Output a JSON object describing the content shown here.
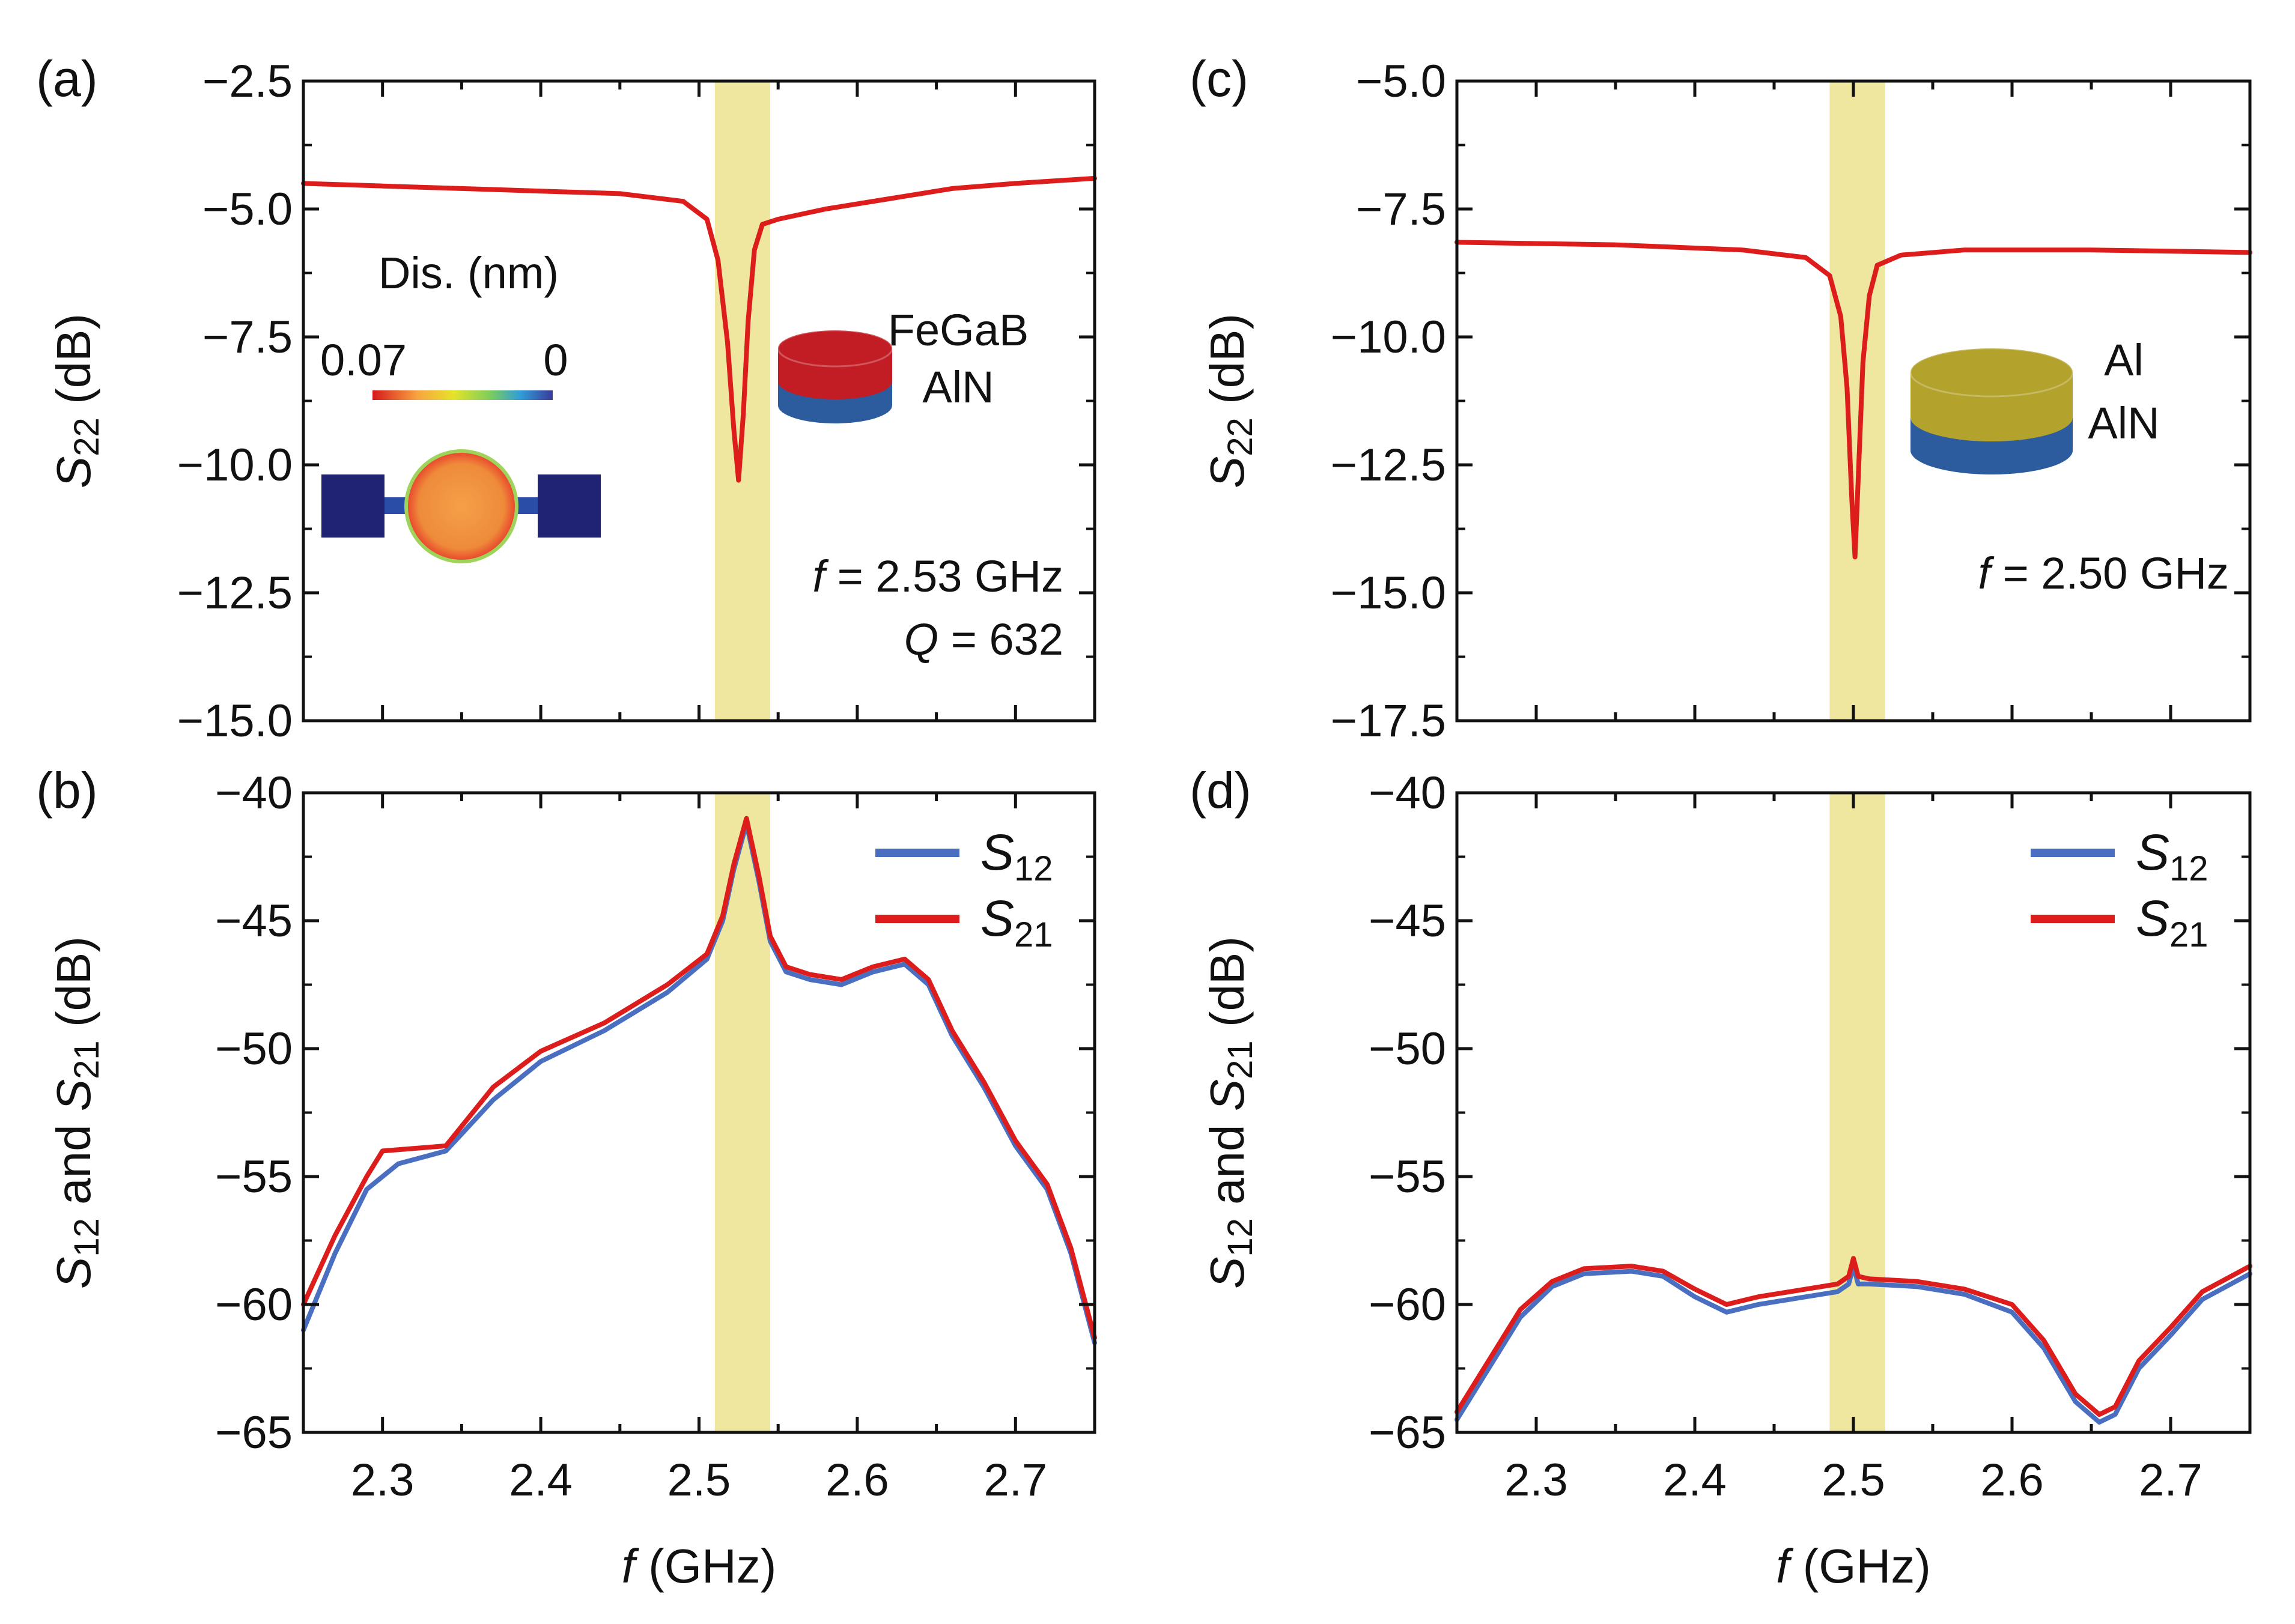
{
  "figure": {
    "x_axis_label_italic": "f",
    "x_axis_label_rest": " (GHz)"
  },
  "chart_data": [
    {
      "id": "a",
      "type": "line",
      "panel_label": "(a)",
      "ylabel_main": "S",
      "ylabel_sub": "22",
      "ylabel_rest": " (dB)",
      "ylim": [
        -15.0,
        -2.5
      ],
      "yticks": [
        "-2.5",
        "-5.0",
        "-7.5",
        "-10.0",
        "-12.5",
        "-15.0"
      ],
      "ytick_values": [
        -2.5,
        -5.0,
        -7.5,
        -10.0,
        -12.5,
        -15.0
      ],
      "xlim": [
        2.25,
        2.75
      ],
      "xticks_visible": false,
      "highlight_band": [
        2.51,
        2.545
      ],
      "series": [
        {
          "name": "S22",
          "color": "#dd1c1c",
          "x": [
            2.25,
            2.3,
            2.35,
            2.4,
            2.45,
            2.49,
            2.505,
            2.512,
            2.518,
            2.522,
            2.525,
            2.528,
            2.531,
            2.535,
            2.54,
            2.55,
            2.58,
            2.62,
            2.66,
            2.7,
            2.75
          ],
          "y": [
            -4.5,
            -4.55,
            -4.6,
            -4.65,
            -4.7,
            -4.85,
            -5.2,
            -6.0,
            -7.6,
            -9.3,
            -10.3,
            -9.0,
            -7.2,
            -5.8,
            -5.3,
            -5.2,
            -5.0,
            -4.8,
            -4.6,
            -4.5,
            -4.4
          ]
        }
      ],
      "inset": {
        "colorbar_title": "Dis. (nm)",
        "colorbar_max_label": "0.07",
        "colorbar_min_label": "0",
        "stack_top_label": "FeGaB",
        "stack_bottom_label": "AlN",
        "stack_top_color": "#c21d24",
        "stack_bottom_color": "#2d5c9e"
      },
      "annotation_lines": [
        {
          "var": "f",
          "rest": " = 2.53 GHz"
        },
        {
          "var": "Q",
          "rest": " = 632"
        }
      ]
    },
    {
      "id": "b",
      "type": "line",
      "panel_label": "(b)",
      "ylabel_parts": [
        "S",
        "12",
        " and ",
        "S",
        "21",
        " (dB)"
      ],
      "ylim": [
        -65,
        -40
      ],
      "yticks": [
        "-40",
        "-45",
        "-50",
        "-55",
        "-60",
        "-65"
      ],
      "ytick_values": [
        -40,
        -45,
        -50,
        -55,
        -60,
        -65
      ],
      "xlim": [
        2.25,
        2.75
      ],
      "xticks": [
        "2.3",
        "2.4",
        "2.5",
        "2.6",
        "2.7"
      ],
      "xtick_values": [
        2.3,
        2.4,
        2.5,
        2.6,
        2.7
      ],
      "highlight_band": [
        2.51,
        2.545
      ],
      "legend": [
        {
          "main": "S",
          "sub": "12",
          "color": "#4a6fc1"
        },
        {
          "main": "S",
          "sub": "21",
          "color": "#dd1c1c"
        }
      ],
      "series": [
        {
          "name": "S12",
          "color": "#4a6fc1",
          "x": [
            2.25,
            2.27,
            2.29,
            2.31,
            2.34,
            2.37,
            2.4,
            2.44,
            2.48,
            2.505,
            2.515,
            2.522,
            2.53,
            2.538,
            2.545,
            2.555,
            2.57,
            2.59,
            2.61,
            2.63,
            2.645,
            2.66,
            2.68,
            2.7,
            2.72,
            2.735,
            2.75
          ],
          "y": [
            -61.0,
            -58.0,
            -55.5,
            -54.5,
            -54.0,
            -52.0,
            -50.5,
            -49.3,
            -47.8,
            -46.5,
            -45.0,
            -43.0,
            -41.2,
            -43.5,
            -45.8,
            -47.0,
            -47.3,
            -47.5,
            -47.0,
            -46.7,
            -47.5,
            -49.5,
            -51.5,
            -53.8,
            -55.5,
            -58.0,
            -61.5
          ]
        },
        {
          "name": "S21",
          "color": "#dd1c1c",
          "x": [
            2.25,
            2.27,
            2.29,
            2.3,
            2.34,
            2.37,
            2.4,
            2.44,
            2.48,
            2.505,
            2.515,
            2.522,
            2.53,
            2.538,
            2.545,
            2.555,
            2.57,
            2.59,
            2.61,
            2.63,
            2.645,
            2.66,
            2.68,
            2.7,
            2.72,
            2.735,
            2.75
          ],
          "y": [
            -60.0,
            -57.3,
            -55.0,
            -54.0,
            -53.8,
            -51.5,
            -50.1,
            -49.0,
            -47.5,
            -46.3,
            -44.8,
            -42.8,
            -41.0,
            -43.3,
            -45.6,
            -46.8,
            -47.1,
            -47.3,
            -46.8,
            -46.5,
            -47.3,
            -49.3,
            -51.3,
            -53.6,
            -55.3,
            -57.8,
            -61.3
          ]
        }
      ]
    },
    {
      "id": "c",
      "type": "line",
      "panel_label": "(c)",
      "ylabel_main": "S",
      "ylabel_sub": "22",
      "ylabel_rest": " (dB)",
      "ylim": [
        -17.5,
        -5.0
      ],
      "yticks": [
        "-5.0",
        "-7.5",
        "-10.0",
        "-12.5",
        "-15.0",
        "-17.5"
      ],
      "ytick_values": [
        -5.0,
        -7.5,
        -10.0,
        -12.5,
        -15.0,
        -17.5
      ],
      "xlim": [
        2.25,
        2.75
      ],
      "xticks_visible": false,
      "highlight_band": [
        2.485,
        2.52
      ],
      "series": [
        {
          "name": "S22",
          "color": "#dd1c1c",
          "x": [
            2.25,
            2.35,
            2.43,
            2.47,
            2.485,
            2.492,
            2.496,
            2.499,
            2.501,
            2.503,
            2.506,
            2.51,
            2.515,
            2.53,
            2.57,
            2.65,
            2.75
          ],
          "y": [
            -8.15,
            -8.2,
            -8.3,
            -8.45,
            -8.8,
            -9.6,
            -11.0,
            -13.2,
            -14.3,
            -12.8,
            -10.5,
            -9.2,
            -8.6,
            -8.4,
            -8.3,
            -8.3,
            -8.35
          ]
        }
      ],
      "inset": {
        "stack_top_label": "Al",
        "stack_bottom_label": "AlN",
        "stack_top_color": "#b3a22c",
        "stack_bottom_color": "#2d5c9e"
      },
      "annotation_lines": [
        {
          "var": "f",
          "rest": " = 2.50 GHz"
        }
      ]
    },
    {
      "id": "d",
      "type": "line",
      "panel_label": "(d)",
      "ylabel_parts": [
        "S",
        "12",
        " and ",
        "S",
        "21",
        " (dB)"
      ],
      "ylim": [
        -65,
        -40
      ],
      "yticks": [
        "-40",
        "-45",
        "-50",
        "-55",
        "-60",
        "-65"
      ],
      "ytick_values": [
        -40,
        -45,
        -50,
        -55,
        -60,
        -65
      ],
      "xlim": [
        2.25,
        2.75
      ],
      "xticks": [
        "2.3",
        "2.4",
        "2.5",
        "2.6",
        "2.7"
      ],
      "xtick_values": [
        2.3,
        2.4,
        2.5,
        2.6,
        2.7
      ],
      "highlight_band": [
        2.485,
        2.52
      ],
      "legend": [
        {
          "main": "S",
          "sub": "12",
          "color": "#4a6fc1"
        },
        {
          "main": "S",
          "sub": "21",
          "color": "#dd1c1c"
        }
      ],
      "series": [
        {
          "name": "S12",
          "color": "#4a6fc1",
          "x": [
            2.25,
            2.27,
            2.29,
            2.31,
            2.33,
            2.36,
            2.38,
            2.4,
            2.42,
            2.44,
            2.47,
            2.49,
            2.497,
            2.5,
            2.503,
            2.51,
            2.54,
            2.57,
            2.6,
            2.62,
            2.64,
            2.655,
            2.665,
            2.68,
            2.7,
            2.72,
            2.75
          ],
          "y": [
            -64.5,
            -62.5,
            -60.5,
            -59.3,
            -58.8,
            -58.7,
            -58.9,
            -59.7,
            -60.3,
            -60.0,
            -59.7,
            -59.5,
            -59.2,
            -58.5,
            -59.2,
            -59.2,
            -59.3,
            -59.6,
            -60.3,
            -61.7,
            -63.8,
            -64.6,
            -64.3,
            -62.5,
            -61.2,
            -59.8,
            -58.8
          ]
        },
        {
          "name": "S21",
          "color": "#dd1c1c",
          "x": [
            2.25,
            2.27,
            2.29,
            2.31,
            2.33,
            2.36,
            2.38,
            2.4,
            2.42,
            2.44,
            2.47,
            2.49,
            2.497,
            2.5,
            2.503,
            2.51,
            2.54,
            2.57,
            2.6,
            2.62,
            2.64,
            2.655,
            2.665,
            2.68,
            2.7,
            2.72,
            2.75
          ],
          "y": [
            -64.2,
            -62.2,
            -60.2,
            -59.1,
            -58.6,
            -58.5,
            -58.7,
            -59.4,
            -60.0,
            -59.7,
            -59.4,
            -59.2,
            -58.9,
            -58.2,
            -58.9,
            -59.0,
            -59.1,
            -59.4,
            -60.0,
            -61.4,
            -63.5,
            -64.3,
            -64.0,
            -62.2,
            -60.9,
            -59.5,
            -58.5
          ]
        }
      ]
    }
  ]
}
